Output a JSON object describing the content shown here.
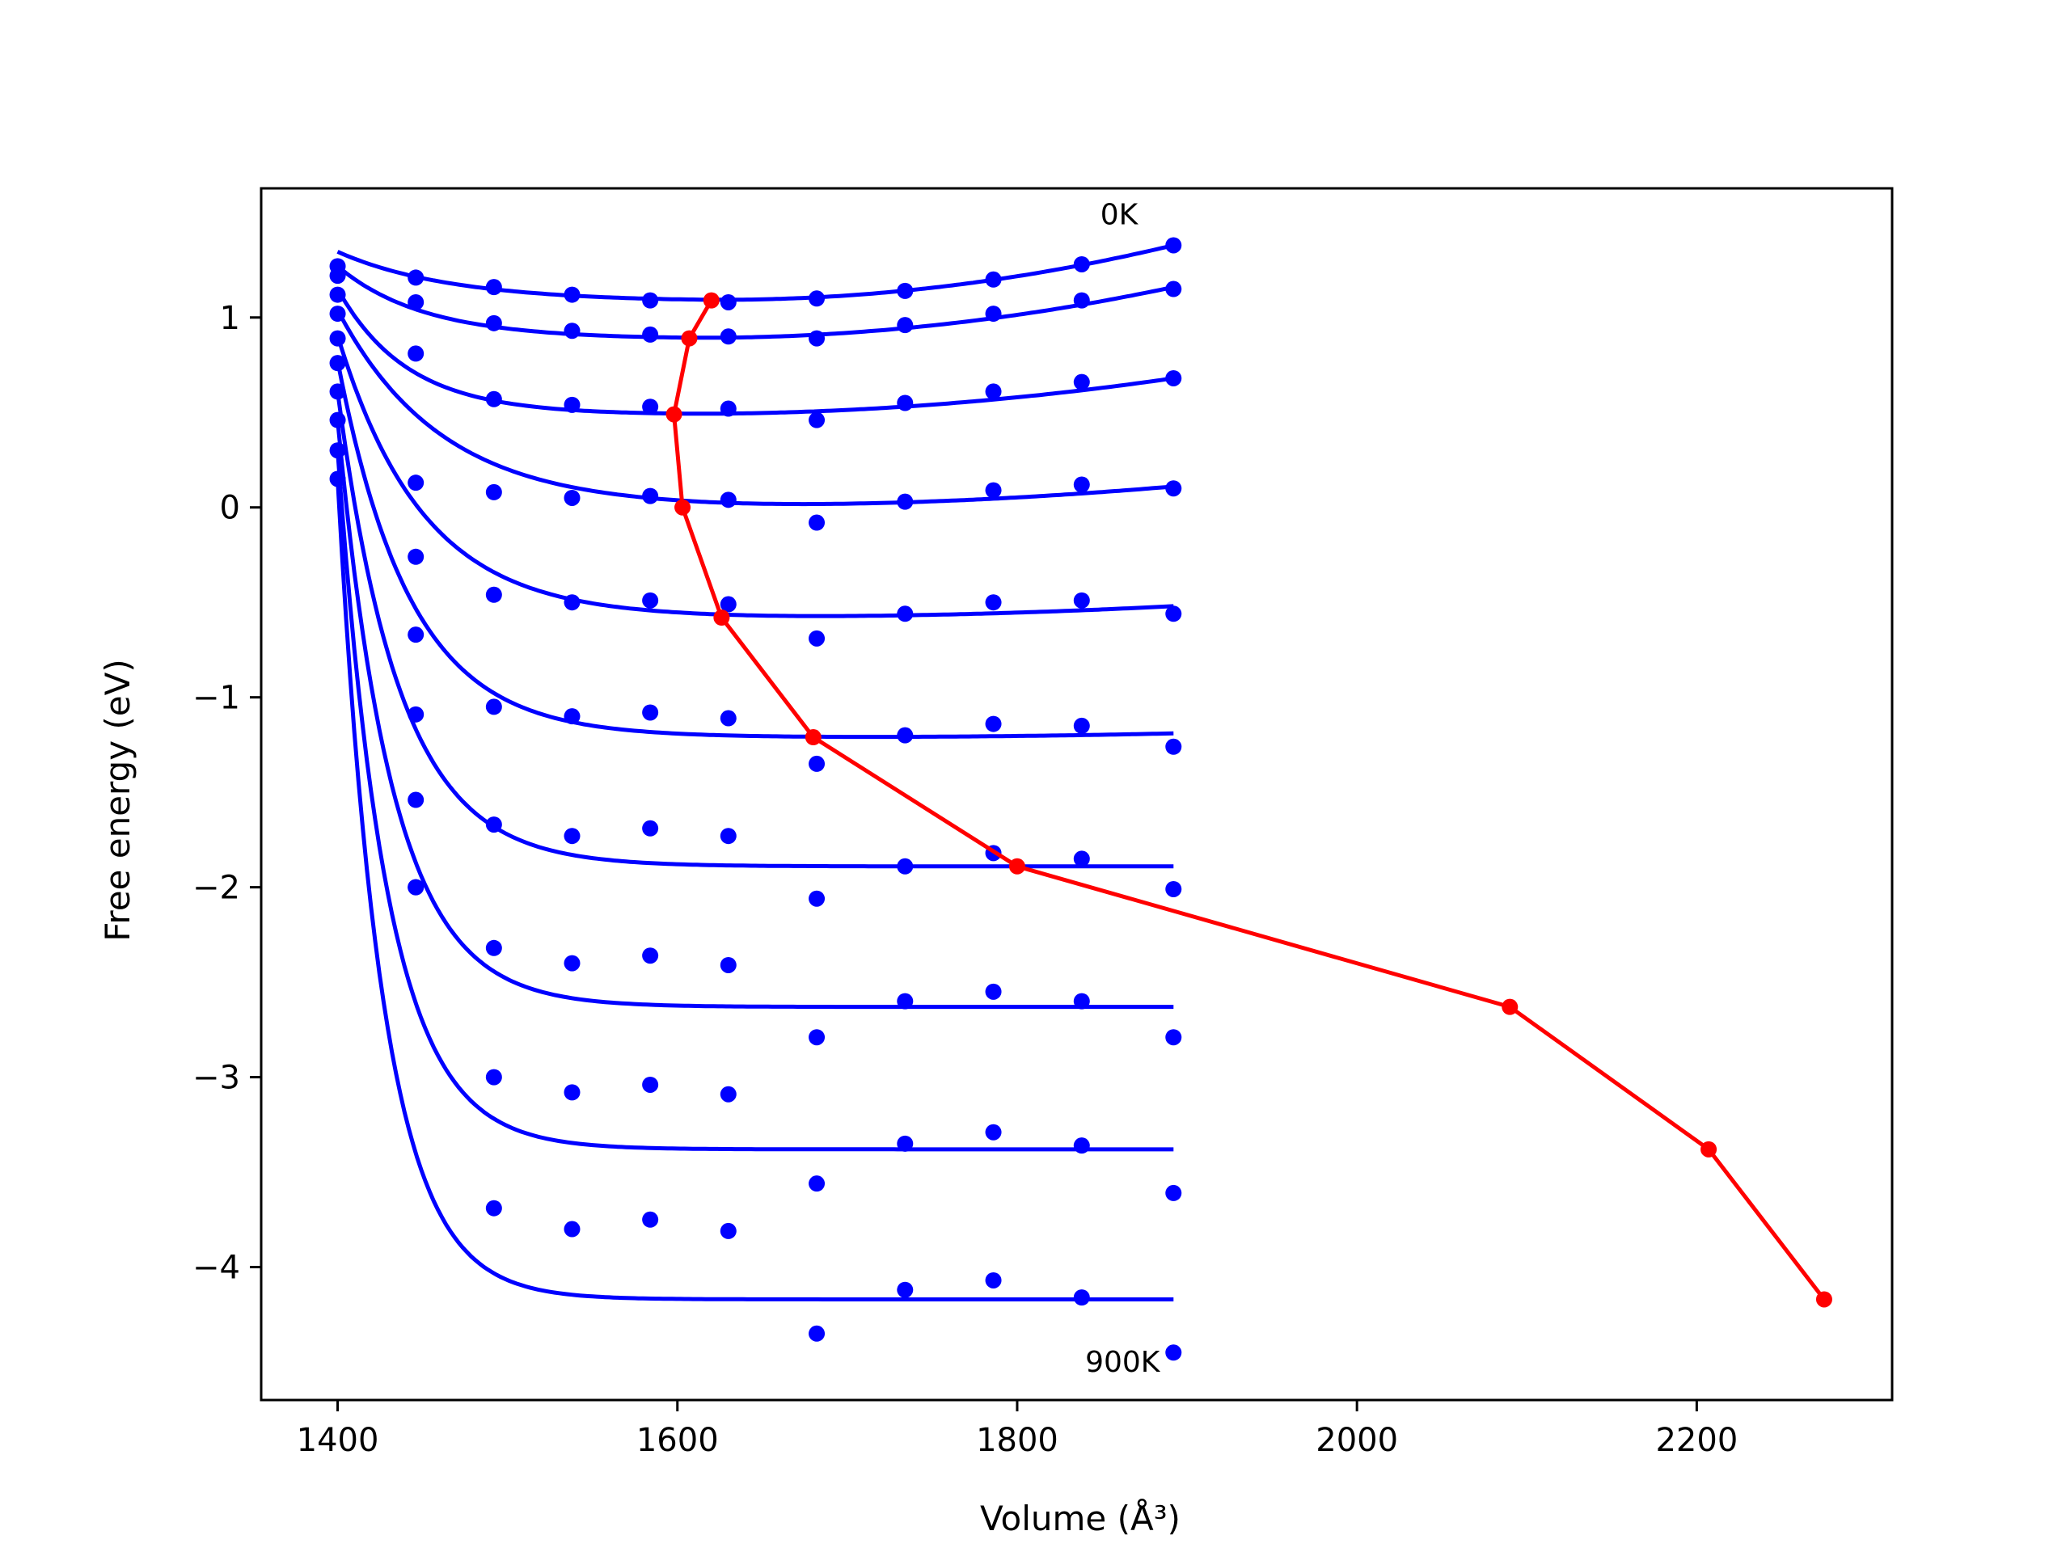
{
  "chart_data": {
    "type": "line",
    "title": "",
    "xlabel": "Volume (Å³)",
    "ylabel": "Free energy (eV)",
    "xlim": [
      1355,
      2315
    ],
    "ylim": [
      -4.7,
      1.68
    ],
    "xticks": [
      1400,
      1600,
      1800,
      2000,
      2200
    ],
    "yticks": [
      -4,
      -3,
      -2,
      -1,
      0,
      1
    ],
    "grid": false,
    "legend": "none",
    "colors": {
      "curves": "#0000ff",
      "minima": "#ff0000",
      "axes": "#000000"
    },
    "annotations": [
      {
        "text": "0K",
        "x": 1860,
        "y": 1.49
      },
      {
        "text": "900K",
        "x": 1862,
        "y": -4.55
      }
    ],
    "x_points": [
      1400,
      1446,
      1492,
      1538,
      1584,
      1630,
      1682,
      1734,
      1786,
      1838,
      1892
    ],
    "series": [
      {
        "temperature_k": 0,
        "points": [
          1.27,
          1.21,
          1.16,
          1.12,
          1.09,
          1.08,
          1.1,
          1.14,
          1.2,
          1.28,
          1.38
        ],
        "fit_min_v": 1620,
        "fit_min_f": 1.09,
        "fit_left": 1.28,
        "fit_right": 1.38
      },
      {
        "temperature_k": 100,
        "points": [
          1.22,
          1.08,
          0.97,
          0.93,
          0.91,
          0.9,
          0.89,
          0.96,
          1.02,
          1.09,
          1.15
        ],
        "fit_min_v": 1607,
        "fit_min_f": 0.89,
        "fit_left": 1.22,
        "fit_right": 1.16
      },
      {
        "temperature_k": 200,
        "points": [
          1.12,
          0.81,
          0.57,
          0.54,
          0.53,
          0.52,
          0.46,
          0.55,
          0.61,
          0.66,
          0.68
        ],
        "fit_min_v": 1598,
        "fit_min_f": 0.49,
        "fit_left": 1.12,
        "fit_right": 0.68
      },
      {
        "temperature_k": 300,
        "points": [
          1.02,
          0.13,
          0.08,
          0.05,
          0.06,
          0.04,
          -0.08,
          0.03,
          0.09,
          0.12,
          0.1
        ],
        "fit_min_v": 1603,
        "fit_min_f": 0.0,
        "fit_left": 1.02,
        "fit_right": 0.11
      },
      {
        "temperature_k": 400,
        "points": [
          0.89,
          -0.26,
          -0.46,
          -0.5,
          -0.49,
          -0.51,
          -0.69,
          -0.56,
          -0.5,
          -0.49,
          -0.56
        ],
        "fit_min_v": 1626,
        "fit_min_f": -0.58,
        "fit_left": 0.89,
        "fit_right": -0.52
      },
      {
        "temperature_k": 500,
        "points": [
          0.76,
          -0.67,
          -1.05,
          -1.1,
          -1.08,
          -1.11,
          -1.35,
          -1.2,
          -1.14,
          -1.15,
          -1.26
        ],
        "fit_min_v": 1680,
        "fit_min_f": -1.21,
        "fit_left": 0.76,
        "fit_right": -1.19
      },
      {
        "temperature_k": 600,
        "points": [
          0.61,
          -1.09,
          -1.67,
          -1.73,
          -1.69,
          -1.73,
          -2.06,
          -1.89,
          -1.82,
          -1.85,
          -2.01
        ],
        "fit_min_v": 1800,
        "fit_min_f": -1.89,
        "fit_left": 0.61,
        "fit_right": -1.89
      },
      {
        "temperature_k": 700,
        "points": [
          0.46,
          -1.54,
          -2.32,
          -2.4,
          -2.36,
          -2.41,
          -2.79,
          -2.6,
          -2.55,
          -2.6,
          -2.79
        ],
        "fit_min_v": 2090,
        "fit_min_f": -2.63,
        "fit_left": 0.46,
        "fit_right": -2.63
      },
      {
        "temperature_k": 800,
        "points": [
          0.3,
          -2.0,
          -3.0,
          -3.08,
          -3.04,
          -3.09,
          -3.56,
          -3.35,
          -3.29,
          -3.36,
          -3.61
        ],
        "fit_min_v": 2207,
        "fit_min_f": -3.38,
        "fit_left": 0.3,
        "fit_right": -3.38
      },
      {
        "temperature_k": 900,
        "points": [
          0.15,
          -2.0,
          -3.69,
          -3.8,
          -3.75,
          -3.81,
          -4.35,
          -4.12,
          -4.07,
          -4.16,
          -4.45
        ],
        "fit_min_v": 2275,
        "fit_min_f": -4.17,
        "fit_left": 0.15,
        "fit_right": -4.17
      }
    ],
    "minima_line": {
      "x": [
        1620,
        1607,
        1598,
        1603,
        1626,
        1680,
        1800,
        2090,
        2207,
        2275
      ],
      "y": [
        1.09,
        0.89,
        0.49,
        0.0,
        -0.58,
        -1.21,
        -1.89,
        -2.63,
        -3.38,
        -4.17
      ]
    }
  }
}
